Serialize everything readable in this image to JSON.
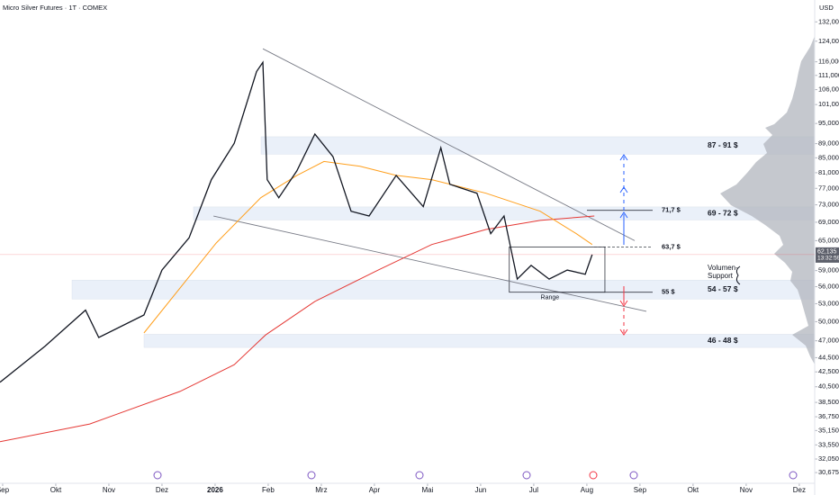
{
  "chart_data": {
    "type": "line",
    "title": "Micro Silver Futures · 1T · COMEX",
    "currency": "USD",
    "log_scale": true,
    "ylim": [
      29800,
      141700
    ],
    "yticks": [
      {
        "value": 132000,
        "label": "132,000"
      },
      {
        "value": 124000,
        "label": "124,000"
      },
      {
        "value": 116000,
        "label": "116,000"
      },
      {
        "value": 111000,
        "label": "111,000"
      },
      {
        "value": 106000,
        "label": "106,000"
      },
      {
        "value": 101000,
        "label": "101,000"
      },
      {
        "value": 95000,
        "label": "95,000"
      },
      {
        "value": 89000,
        "label": "89,000"
      },
      {
        "value": 85000,
        "label": "85,000"
      },
      {
        "value": 81000,
        "label": "81,000"
      },
      {
        "value": 77000,
        "label": "77,000"
      },
      {
        "value": 73000,
        "label": "73,000"
      },
      {
        "value": 69000,
        "label": "69,000"
      },
      {
        "value": 65000,
        "label": "65,000"
      },
      {
        "value": 59000,
        "label": "59,000"
      },
      {
        "value": 56000,
        "label": "56,000"
      },
      {
        "value": 53000,
        "label": "53,000"
      },
      {
        "value": 50000,
        "label": "50,000"
      },
      {
        "value": 47000,
        "label": "47,000"
      },
      {
        "value": 44500,
        "label": "44,500"
      },
      {
        "value": 42500,
        "label": "42,500"
      },
      {
        "value": 40500,
        "label": "40,500"
      },
      {
        "value": 38500,
        "label": "38,500"
      },
      {
        "value": 36750,
        "label": "36,750"
      },
      {
        "value": 35150,
        "label": "35,150"
      },
      {
        "value": 33550,
        "label": "33,550"
      },
      {
        "value": 32050,
        "label": "32,050"
      },
      {
        "value": 30675,
        "label": "30,675"
      }
    ],
    "xlim": [
      -0.05,
      15.29
    ],
    "xticks": [
      {
        "value": 0,
        "label": "Sep"
      },
      {
        "value": 1,
        "label": "Okt"
      },
      {
        "value": 2,
        "label": "Nov"
      },
      {
        "value": 3,
        "label": "Dez"
      },
      {
        "value": 4,
        "label": "2026"
      },
      {
        "value": 5,
        "label": "Feb"
      },
      {
        "value": 6,
        "label": "Mrz"
      },
      {
        "value": 7,
        "label": "Apr"
      },
      {
        "value": 8,
        "label": "Mai"
      },
      {
        "value": 9,
        "label": "Jun"
      },
      {
        "value": 10,
        "label": "Jul"
      },
      {
        "value": 11,
        "label": "Aug"
      },
      {
        "value": 12,
        "label": "Sep"
      },
      {
        "value": 13,
        "label": "Okt"
      },
      {
        "value": 14,
        "label": "Nov"
      },
      {
        "value": 15,
        "label": "Dez"
      }
    ],
    "series": [
      {
        "color": "#e53935",
        "x": [
          -0.05,
          1.64,
          3.34,
          4.36,
          4.95,
          5.88,
          7.07,
          8.08,
          9.1,
          10.12,
          11.14
        ],
        "values": [
          33900,
          35900,
          39900,
          43500,
          47900,
          53400,
          59100,
          64200,
          67400,
          69400,
          70400
        ]
      },
      {
        "color": "#ff9f1c",
        "x": [
          2.66,
          4.02,
          4.86,
          5.54,
          6.05,
          6.73,
          7.41,
          8.08,
          9.1,
          10.12,
          10.8,
          11.1
        ],
        "values": [
          48200,
          64500,
          74700,
          80300,
          84000,
          82700,
          80300,
          79200,
          75800,
          71500,
          66500,
          64200
        ]
      },
      {
        "color": "#131722",
        "x": [
          -0.05,
          0.8,
          1.56,
          1.81,
          2.66,
          3.0,
          3.51,
          3.93,
          4.36,
          4.78,
          4.9,
          4.98,
          5.2,
          5.54,
          5.88,
          6.22,
          6.56,
          6.9,
          7.41,
          7.92,
          8.25,
          8.42,
          8.93,
          9.19,
          9.44,
          9.69,
          9.95,
          10.29,
          10.63,
          10.97,
          11.1
        ],
        "values": [
          41100,
          46200,
          51900,
          47500,
          51100,
          59100,
          65600,
          79200,
          89100,
          112400,
          115800,
          79200,
          74700,
          81500,
          91800,
          85300,
          71500,
          70400,
          80300,
          72600,
          87800,
          78000,
          75800,
          66500,
          70400,
          57400,
          60000,
          57400,
          59100,
          58300,
          62135
        ]
      }
    ],
    "last_price": {
      "value": 62135,
      "label": "62,135"
    },
    "countdown": "13:32:59",
    "zones": [
      {
        "label": "87 - 91 $",
        "range": [
          86000,
          91000
        ]
      },
      {
        "label": "69 - 72 $",
        "range": [
          69500,
          72500
        ]
      },
      {
        "label": "54 - 57 $",
        "range": [
          53800,
          57200
        ]
      },
      {
        "label": "46 - 48 $",
        "range": [
          46000,
          48000
        ]
      }
    ],
    "levels": [
      {
        "label": "71,7 $",
        "value": 71700
      },
      {
        "label": "63,7 $",
        "value": 63700
      },
      {
        "label": "55 $",
        "value": 55000
      }
    ],
    "trendlines": [
      {
        "x": [
          4.9,
          11.9
        ],
        "values": [
          121000,
          65000
        ]
      },
      {
        "x": [
          3.97,
          12.12
        ],
        "values": [
          70400,
          51700
        ]
      }
    ],
    "range_box": {
      "label": "Range",
      "x": [
        9.54,
        11.34
      ],
      "values": [
        55000,
        63700
      ]
    },
    "volume_note": [
      "Volumen-",
      "Support"
    ]
  }
}
